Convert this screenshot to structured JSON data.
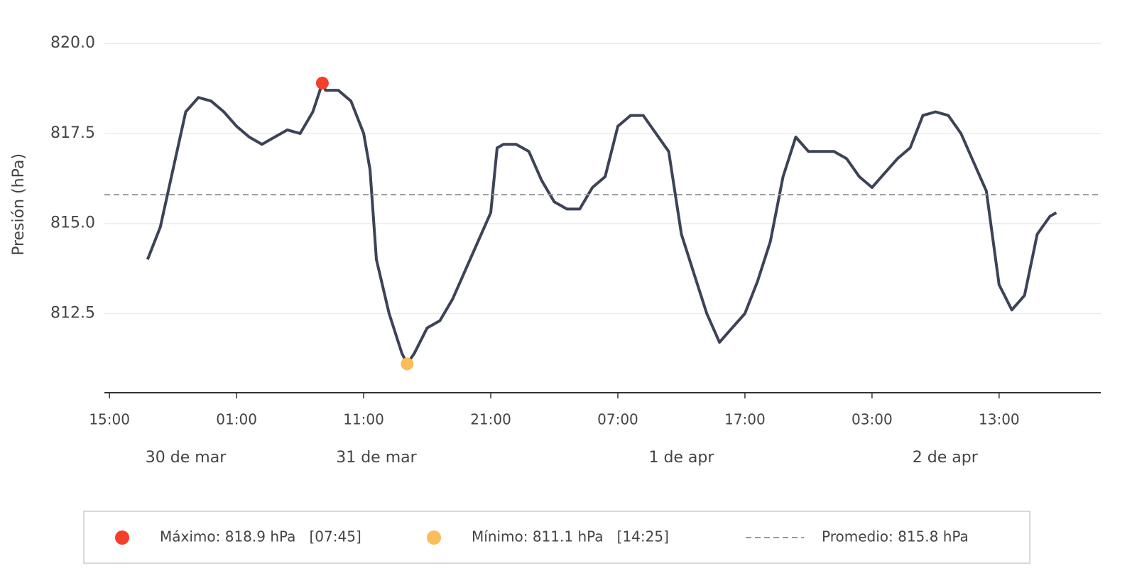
{
  "chart_data": {
    "type": "line",
    "y_label": "Presión (hPa)",
    "x": [
      18,
      19,
      20,
      21,
      22,
      23,
      24,
      25,
      26,
      27,
      28,
      29,
      30,
      31,
      31.75,
      32,
      33,
      34,
      35,
      35.5,
      36,
      37,
      38,
      38.42,
      39,
      40,
      41,
      42,
      43,
      44,
      45,
      45.5,
      46,
      47,
      48,
      49,
      50,
      51,
      52,
      53,
      54,
      55,
      56,
      57,
      58,
      59,
      60,
      61,
      62,
      63,
      64,
      65,
      66,
      67,
      68,
      69,
      70,
      71,
      72,
      73,
      74,
      75,
      76,
      77,
      78,
      79,
      80,
      81,
      82,
      83,
      84,
      85,
      86,
      87,
      88,
      89,
      89.5
    ],
    "series": [
      {
        "color": "#3d4357",
        "values": [
          814.0,
          814.9,
          816.5,
          818.1,
          818.5,
          818.4,
          818.1,
          817.7,
          817.4,
          817.2,
          817.4,
          817.6,
          817.5,
          818.1,
          818.9,
          818.7,
          818.7,
          818.4,
          817.5,
          816.5,
          814.0,
          812.5,
          811.4,
          811.1,
          811.4,
          812.1,
          812.3,
          812.9,
          813.7,
          814.5,
          815.3,
          817.1,
          817.2,
          817.2,
          817.0,
          816.2,
          815.6,
          815.4,
          815.4,
          816.0,
          816.3,
          817.7,
          818.0,
          818.0,
          817.5,
          817.0,
          814.7,
          813.6,
          812.5,
          811.7,
          812.1,
          812.5,
          813.4,
          814.5,
          816.3,
          817.4,
          817.0,
          817.0,
          817.0,
          816.8,
          816.3,
          816.0,
          816.4,
          816.8,
          817.1,
          818.0,
          818.1,
          818.0,
          817.5,
          816.7,
          815.9,
          813.3,
          812.6,
          813.0,
          814.7,
          815.2,
          815.3
        ]
      }
    ],
    "max_point": {
      "x": 31.75,
      "y": 818.9,
      "color": "#f43f2a",
      "label": "Máximo: 818.9 hPa   [07:45]"
    },
    "min_point": {
      "x": 38.42,
      "y": 811.1,
      "color": "#fbbc5c",
      "label": "Mínimo: 811.1 hPa   [14:25]"
    },
    "average": {
      "value": 815.8,
      "color": "#999999",
      "label": "Promedio: 815.8 hPa"
    },
    "xlim": [
      14.6,
      93
    ],
    "xticks": [
      {
        "value": 15,
        "label": "15:00"
      },
      {
        "value": 25,
        "label": "01:00"
      },
      {
        "value": 35,
        "label": "11:00"
      },
      {
        "value": 45,
        "label": "21:00"
      },
      {
        "value": 55,
        "label": "07:00"
      },
      {
        "value": 65,
        "label": "17:00"
      },
      {
        "value": 75,
        "label": "03:00"
      },
      {
        "value": 85,
        "label": "13:00"
      }
    ],
    "days": [
      {
        "value": 0,
        "label": "30 de mar"
      },
      {
        "value": 24,
        "label": "31 de mar"
      },
      {
        "value": 48,
        "label": "1 de apr"
      },
      {
        "value": 72,
        "label": "2 de apr"
      }
    ],
    "ylim": [
      810.3,
      820.3
    ],
    "yticks": [
      812.5,
      {
        "value": 815,
        "label": "815.0"
      },
      817.5,
      {
        "value": 820,
        "label": "820.0"
      }
    ],
    "grid": true,
    "legend_position": "bottom"
  }
}
